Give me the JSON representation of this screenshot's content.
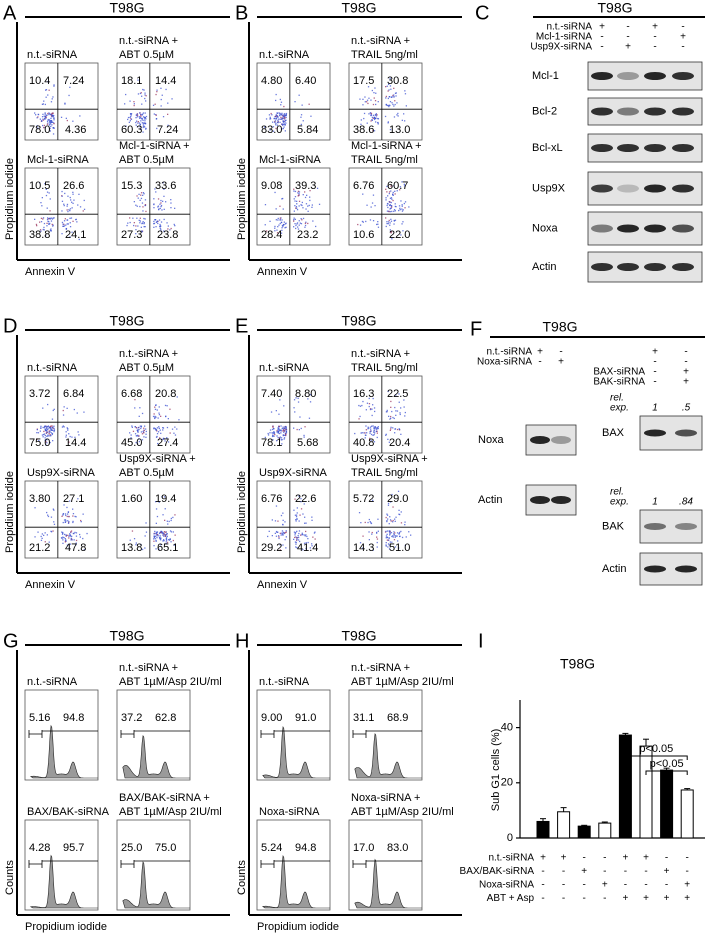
{
  "panels": {
    "A": {
      "letter": "A",
      "kind": "dot",
      "cell_line": "T98G",
      "y_label": "Propidium iodide",
      "x_label": "Annexin V",
      "plots": [
        {
          "label": [
            "n.t.-siRNA"
          ],
          "quadrants": [
            "10.4",
            "7.24",
            "78.0",
            "4.36"
          ]
        },
        {
          "label": [
            "n.t.-siRNA +",
            "ABT 0.5µM"
          ],
          "quadrants": [
            "18.1",
            "14.4",
            "60.3",
            "7.24"
          ]
        },
        {
          "label": [
            "Mcl-1-siRNA"
          ],
          "quadrants": [
            "10.5",
            "26.6",
            "38.8",
            "24.1"
          ]
        },
        {
          "label": [
            "Mcl-1-siRNA +",
            "ABT 0.5µM"
          ],
          "quadrants": [
            "15.3",
            "33.6",
            "27.3",
            "23.8"
          ]
        }
      ]
    },
    "B": {
      "letter": "B",
      "kind": "dot",
      "cell_line": "T98G",
      "y_label": "Propidium iodide",
      "x_label": "Annexin V",
      "plots": [
        {
          "label": [
            "n.t.-siRNA"
          ],
          "quadrants": [
            "4.80",
            "6.40",
            "83.0",
            "5.84"
          ]
        },
        {
          "label": [
            "n.t.-siRNA +",
            "TRAIL 5ng/ml"
          ],
          "quadrants": [
            "17.5",
            "30.8",
            "38.6",
            "13.0"
          ]
        },
        {
          "label": [
            "Mcl-1-siRNA"
          ],
          "quadrants": [
            "9.08",
            "39.3",
            "28.4",
            "23.2"
          ]
        },
        {
          "label": [
            "Mcl-1-siRNA +",
            "TRAIL 5ng/ml"
          ],
          "quadrants": [
            "6.76",
            "60.7",
            "10.6",
            "22.0"
          ]
        }
      ]
    },
    "C": {
      "letter": "C",
      "cell_line": "T98G",
      "conditions": [
        {
          "label": "n.t.-siRNA",
          "signs": [
            "+",
            "-",
            "+",
            "-"
          ]
        },
        {
          "label": "Mcl-1-siRNA",
          "signs": [
            "-",
            "-",
            "-",
            "+"
          ]
        },
        {
          "label": "Usp9X-siRNA",
          "signs": [
            "-",
            "+",
            "-",
            "-"
          ]
        }
      ],
      "blots": [
        "Mcl-1",
        "Bcl-2",
        "Bcl-xL",
        "Usp9X",
        "Noxa",
        "Actin"
      ]
    },
    "D": {
      "letter": "D",
      "kind": "dot",
      "cell_line": "T98G",
      "y_label": "Propidium iodide",
      "x_label": "Annexin V",
      "plots": [
        {
          "label": [
            "n.t.-siRNA"
          ],
          "quadrants": [
            "3.72",
            "6.84",
            "75.0",
            "14.4"
          ]
        },
        {
          "label": [
            "n.t.-siRNA +",
            "ABT 0.5µM"
          ],
          "quadrants": [
            "6.68",
            "20.8",
            "45.0",
            "27.4"
          ]
        },
        {
          "label": [
            "Usp9X-siRNA"
          ],
          "quadrants": [
            "3.80",
            "27.1",
            "21.2",
            "47.8"
          ]
        },
        {
          "label": [
            "Usp9X-siRNA +",
            "ABT 0.5µM"
          ],
          "quadrants": [
            "1.60",
            "19.4",
            "13.8",
            "65.1"
          ]
        }
      ]
    },
    "E": {
      "letter": "E",
      "kind": "dot",
      "cell_line": "T98G",
      "y_label": "Propidium iodide",
      "x_label": "Annexin V",
      "plots": [
        {
          "label": [
            "n.t.-siRNA"
          ],
          "quadrants": [
            "7.40",
            "8.80",
            "78.1",
            "5.68"
          ]
        },
        {
          "label": [
            "n.t.-siRNA +",
            "TRAIL 5ng/ml"
          ],
          "quadrants": [
            "16.3",
            "22.5",
            "40.8",
            "20.4"
          ]
        },
        {
          "label": [
            "Usp9X-siRNA"
          ],
          "quadrants": [
            "6.76",
            "22.6",
            "29.2",
            "41.4"
          ]
        },
        {
          "label": [
            "Usp9X-siRNA +",
            "TRAIL 5ng/ml"
          ],
          "quadrants": [
            "5.72",
            "29.0",
            "14.3",
            "51.0"
          ]
        }
      ]
    },
    "F": {
      "letter": "F",
      "cell_line": "T98G",
      "conditions": [
        {
          "label": "n.t.-siRNA",
          "left_signs": [
            "+",
            "-"
          ],
          "right_signs": [
            "+",
            "-"
          ]
        },
        {
          "label": "Noxa-siRNA",
          "left_signs": [
            "-",
            "+"
          ],
          "right_signs": [
            "-",
            "-"
          ]
        },
        {
          "label": "BAX-siRNA",
          "right_signs": [
            "-",
            "+"
          ]
        },
        {
          "label": "BAK-siRNA",
          "right_signs": [
            "-",
            "+"
          ]
        }
      ],
      "left_blots": [
        "Noxa",
        "Actin"
      ],
      "right_blots": [
        {
          "label": "BAX",
          "rel_exp_label": [
            "rel.",
            "exp."
          ],
          "rel_exp": [
            "1",
            ".5"
          ]
        },
        {
          "label": "BAK",
          "rel_exp_label": [
            "rel.",
            "exp."
          ],
          "rel_exp": [
            "1",
            ".84"
          ]
        },
        {
          "label": "Actin"
        }
      ]
    },
    "G": {
      "letter": "G",
      "kind": "hist",
      "cell_line": "T98G",
      "y_label": "Counts",
      "x_label": "Propidium iodide",
      "plots": [
        {
          "label": [
            "n.t.-siRNA"
          ],
          "gates": [
            "5.16",
            "94.8"
          ]
        },
        {
          "label": [
            "n.t.-siRNA +",
            "ABT 1µM/Asp 2IU/ml"
          ],
          "gates": [
            "37.2",
            "62.8"
          ]
        },
        {
          "label": [
            "BAX/BAK-siRNA"
          ],
          "gates": [
            "4.28",
            "95.7"
          ]
        },
        {
          "label": [
            "BAX/BAK-siRNA +",
            "ABT 1µM/Asp 2IU/ml"
          ],
          "gates": [
            "25.0",
            "75.0"
          ]
        }
      ]
    },
    "H": {
      "letter": "H",
      "kind": "hist",
      "cell_line": "T98G",
      "y_label": "Counts",
      "x_label": "Propidium iodide",
      "plots": [
        {
          "label": [
            "n.t.-siRNA"
          ],
          "gates": [
            "9.00",
            "91.0"
          ]
        },
        {
          "label": [
            "n.t.-siRNA +",
            "ABT 1µM/Asp 2IU/ml"
          ],
          "gates": [
            "31.1",
            "68.9"
          ]
        },
        {
          "label": [
            "Noxa-siRNA"
          ],
          "gates": [
            "5.24",
            "94.8"
          ]
        },
        {
          "label": [
            "Noxa-siRNA +",
            "ABT 1µM/Asp 2IU/ml"
          ],
          "gates": [
            "17.0",
            "83.0"
          ]
        }
      ]
    },
    "I": {
      "letter": "I",
      "type": "bar",
      "title": "T98G",
      "y_label": "Sub G1 cells (%)",
      "values": [
        6,
        9.5,
        4.3,
        5.4,
        37.3,
        33.3,
        24.6,
        17.4
      ],
      "errors": [
        1,
        1.5,
        0.3,
        0.4,
        0.6,
        2.5,
        0.7,
        0.5
      ],
      "colors": [
        "#000000",
        "#ffffff",
        "#000000",
        "#ffffff",
        "#000000",
        "#ffffff",
        "#000000",
        "#ffffff"
      ],
      "ylim": [
        0,
        50
      ],
      "yticks": [
        0,
        20,
        40
      ],
      "conditions": [
        {
          "label": "n.t.-siRNA",
          "signs": [
            "+",
            "+",
            "-",
            "-",
            "+",
            "+",
            "-",
            "-"
          ]
        },
        {
          "label": "BAX/BAK-siRNA",
          "signs": [
            "-",
            "-",
            "+",
            "-",
            "-",
            "-",
            "+",
            "-"
          ]
        },
        {
          "label": "Noxa-siRNA",
          "signs": [
            "-",
            "-",
            "-",
            "+",
            "-",
            "-",
            "-",
            "+"
          ]
        },
        {
          "label": "ABT + Asp",
          "signs": [
            "-",
            "-",
            "-",
            "-",
            "+",
            "+",
            "+",
            "+"
          ]
        }
      ],
      "annotations": [
        "p<0.05",
        "p<0.05"
      ]
    }
  }
}
